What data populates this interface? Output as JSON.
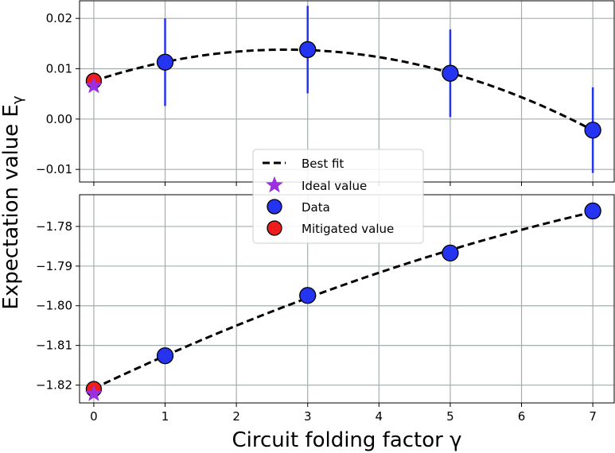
{
  "chart_data": [
    {
      "type": "scatter",
      "panel": "top",
      "ylim": [
        -0.0125,
        0.0235
      ],
      "xlim": [
        -0.2,
        7.3
      ],
      "yticks": [
        -0.01,
        0.0,
        0.01,
        0.02
      ],
      "ytick_labels": [
        "−0.01",
        "0.00",
        "0.01",
        "0.02"
      ],
      "grid": true,
      "series": [
        {
          "name": "Data",
          "x": [
            1,
            3,
            5,
            7
          ],
          "y": [
            0.0113,
            0.0138,
            0.0091,
            -0.0022
          ],
          "yerr_low": [
            0.0026,
            0.0051,
            0.0004,
            -0.0107
          ],
          "yerr_high": [
            0.02,
            0.0225,
            0.0178,
            0.0063
          ],
          "color": "#2534f0"
        },
        {
          "name": "Mitigated value",
          "x": [
            0
          ],
          "y": [
            0.0076
          ],
          "color": "#ee1c1c"
        },
        {
          "name": "Ideal value",
          "x": [
            0
          ],
          "y": [
            0.0066
          ],
          "color": "#9b30e0"
        },
        {
          "name": "Best fit",
          "fit": "quadratic",
          "x": [
            0,
            1,
            3,
            5,
            7
          ],
          "y": [
            0.0076,
            0.0113,
            0.0138,
            0.0091,
            -0.0022
          ]
        }
      ]
    },
    {
      "type": "scatter",
      "panel": "bottom",
      "ylim": [
        -1.8245,
        -1.772
      ],
      "xlim": [
        -0.2,
        7.3
      ],
      "yticks": [
        -1.82,
        -1.81,
        -1.8,
        -1.79,
        -1.78
      ],
      "ytick_labels": [
        "−1.82",
        "−1.81",
        "−1.80",
        "−1.79",
        "−1.78"
      ],
      "grid": true,
      "series": [
        {
          "name": "Data",
          "x": [
            1,
            3,
            5,
            7
          ],
          "y": [
            -1.8126,
            -1.7974,
            -1.7867,
            -1.7761
          ],
          "color": "#2534f0"
        },
        {
          "name": "Mitigated value",
          "x": [
            0
          ],
          "y": [
            -1.821
          ],
          "color": "#ee1c1c"
        },
        {
          "name": "Ideal value",
          "x": [
            0
          ],
          "y": [
            -1.8222
          ],
          "color": "#9b30e0"
        },
        {
          "name": "Best fit",
          "fit": "quadratic",
          "x": [
            0,
            1,
            3,
            5,
            7
          ],
          "y": [
            -1.821,
            -1.8126,
            -1.7974,
            -1.7867,
            -1.7761
          ]
        }
      ]
    }
  ],
  "shared": {
    "xticks": [
      0,
      1,
      2,
      3,
      4,
      5,
      6,
      7
    ],
    "xtick_labels": [
      "0",
      "1",
      "2",
      "3",
      "4",
      "5",
      "6",
      "7"
    ],
    "xlabel": "Circuit folding factor γ",
    "ylabel": "Expectation value E",
    "ylabel_subscript": "γ"
  },
  "legend": {
    "placement": "center",
    "items": [
      "Best fit",
      "Ideal value",
      "Data",
      "Mitigated value"
    ]
  },
  "colors": {
    "data": "#2534f0",
    "mitigated": "#ee1c1c",
    "ideal": "#9b30e0",
    "grid": "#a4adad",
    "fit": "#000000"
  }
}
